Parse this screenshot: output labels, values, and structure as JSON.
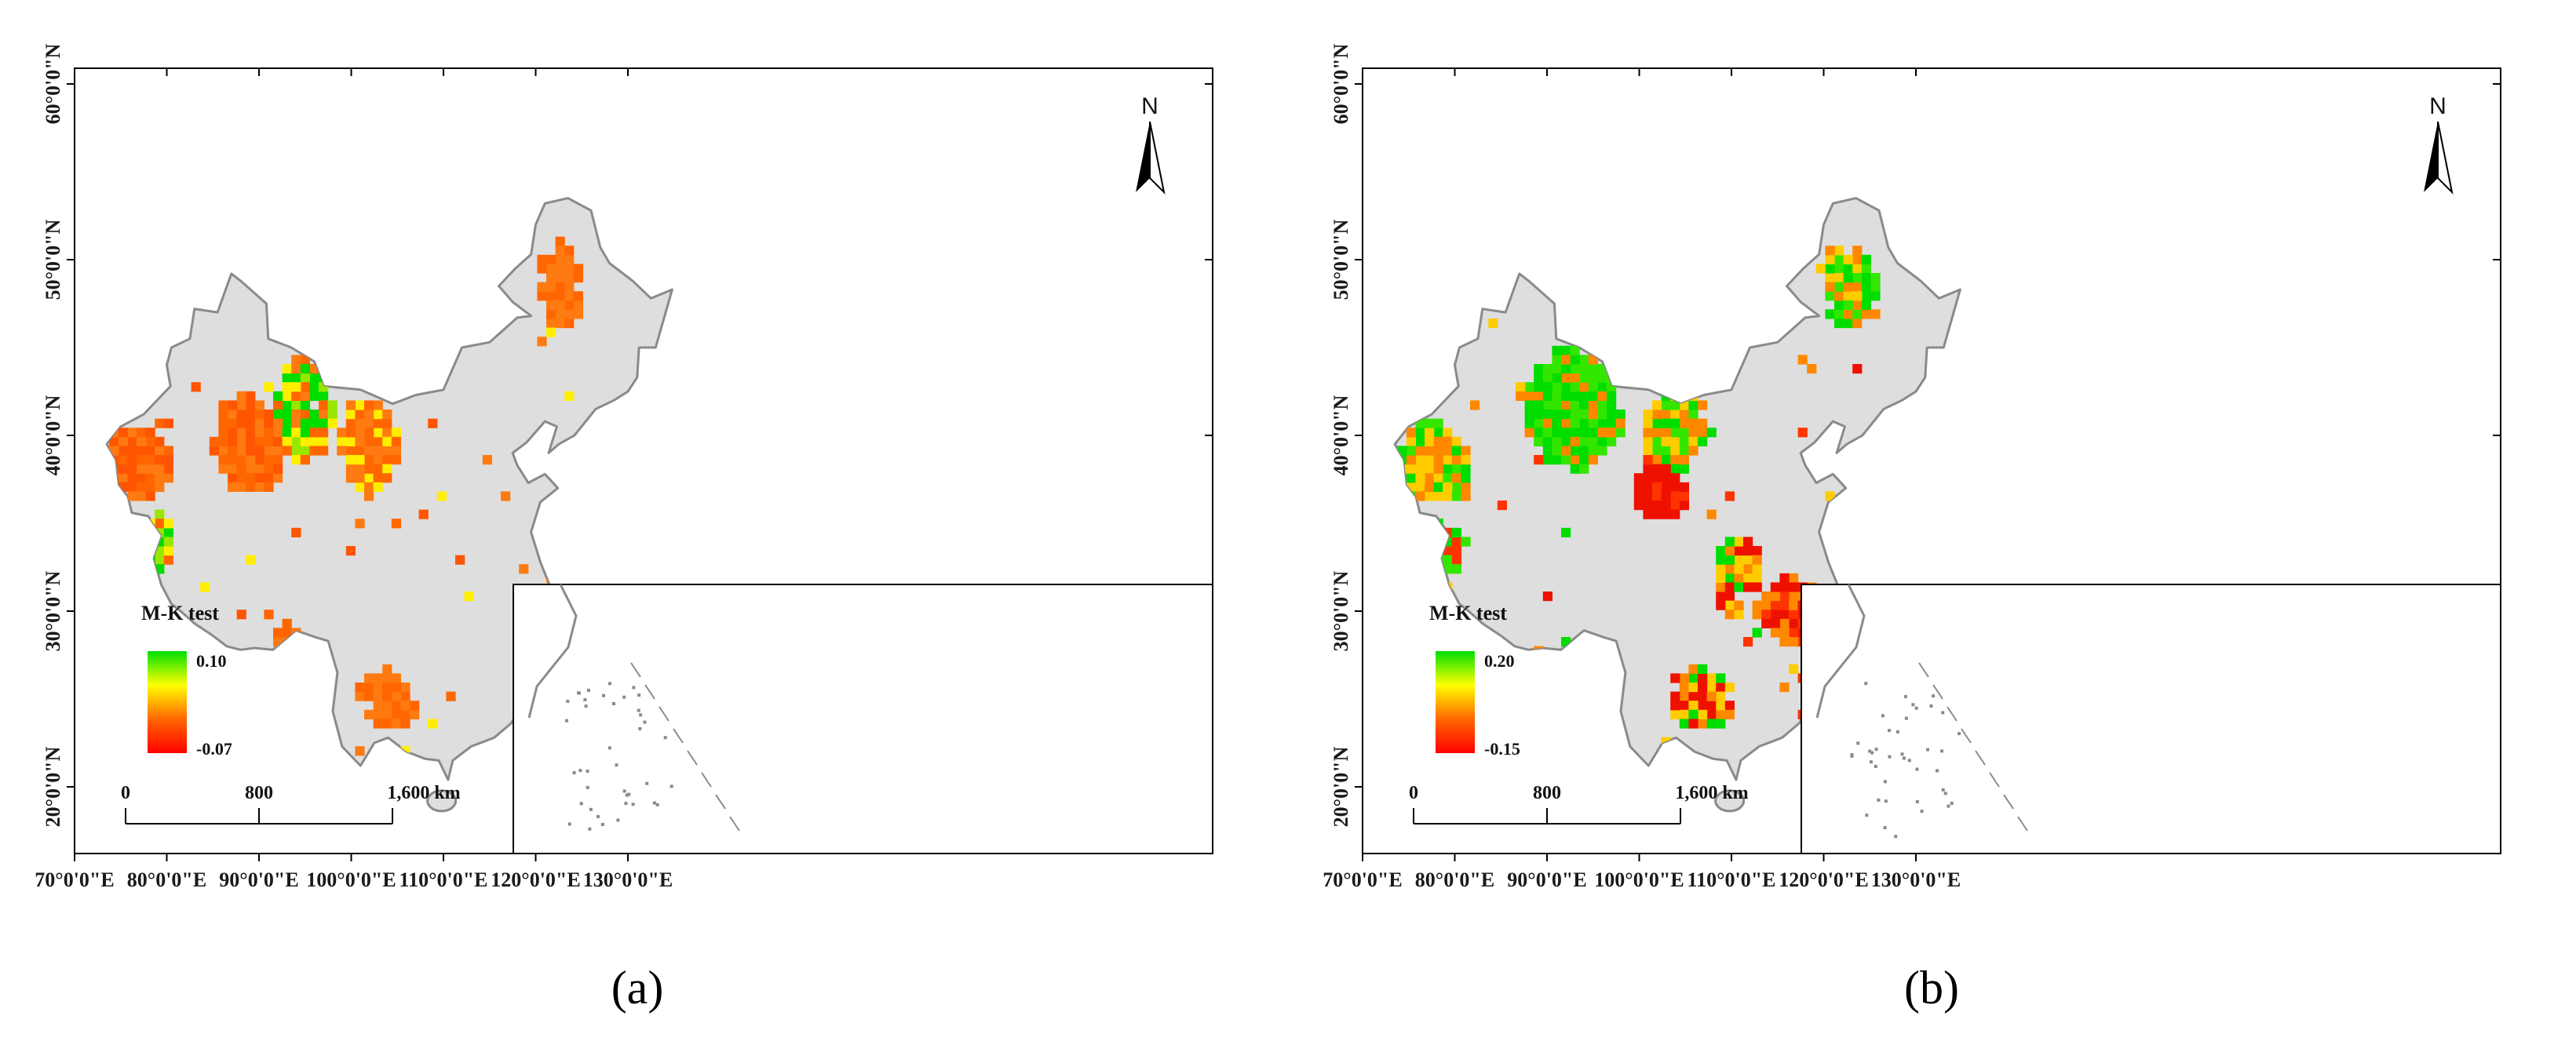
{
  "panels": [
    {
      "id": "a",
      "caption": "(a)",
      "legend": {
        "title": "M-K test",
        "max": "0.10",
        "min": "-0.07",
        "colors": [
          "#00e000",
          "#ffff00",
          "#ff6600",
          "#ff0000"
        ]
      },
      "cell_colors": [
        "#ff6600",
        "#ff7a10",
        "#00dd00",
        "#99e600",
        "#ffee00",
        "#ff5500"
      ]
    },
    {
      "id": "b",
      "caption": "(b)",
      "legend": {
        "title": "M-K test",
        "max": "0.20",
        "min": "-0.15",
        "colors": [
          "#00e000",
          "#ffff00",
          "#ff6600",
          "#ff0000"
        ]
      },
      "cell_colors": [
        "#00dd00",
        "#33e600",
        "#ffcc00",
        "#ff8800",
        "#ee1100",
        "#ff3300"
      ]
    }
  ],
  "axes": {
    "x_labels": [
      "70°0'0\"E",
      "80°0'0\"E",
      "90°0'0\"E",
      "100°0'0\"E",
      "110°0'0\"E",
      "120°0'0\"E",
      "130°0'0\"E"
    ],
    "y_labels": [
      "60°0'0\"N",
      "50°0'0\"N",
      "40°0'0\"N",
      "30°0'0\"N",
      "20°0'0\"N"
    ]
  },
  "scale_bar": {
    "labels": [
      "0",
      "800",
      "1,600 km"
    ]
  },
  "north_arrow": {
    "label": "N"
  },
  "colors": {
    "land": "#dedede",
    "border": "#8a8a8a",
    "frame": "#000000"
  }
}
